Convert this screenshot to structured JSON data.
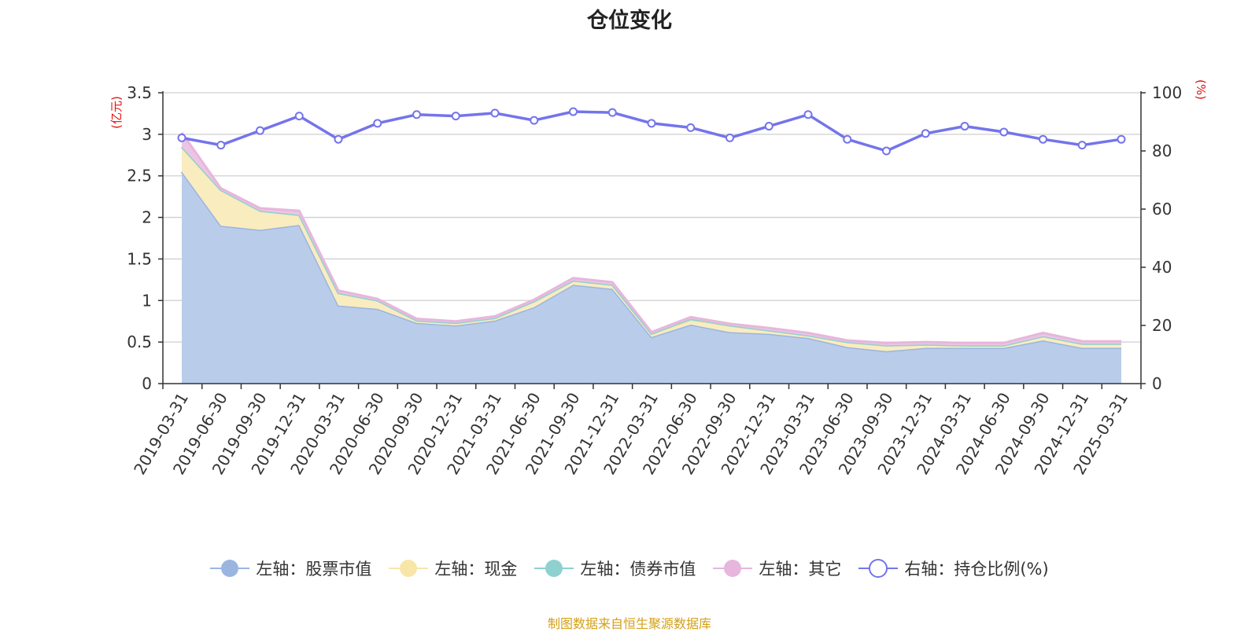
{
  "title": "仓位变化",
  "source_note": "制图数据来自恒生聚源数据库",
  "legend": [
    {
      "label": "左轴：股票市值",
      "color": "#9bb5e1",
      "marker": "filled"
    },
    {
      "label": "左轴：现金",
      "color": "#f8e6a8",
      "marker": "filled"
    },
    {
      "label": "左轴：债券市值",
      "color": "#8fd1cf",
      "marker": "filled"
    },
    {
      "label": "左轴：其它",
      "color": "#e7b6dc",
      "marker": "filled"
    },
    {
      "label": "右轴：持仓比例(%)",
      "color": "#7474ec",
      "marker": "hollow"
    }
  ],
  "chart_data": {
    "type": "area",
    "categories": [
      "2019-03-31",
      "2019-06-30",
      "2019-09-30",
      "2019-12-31",
      "2020-03-31",
      "2020-06-30",
      "2020-09-30",
      "2020-12-31",
      "2021-03-31",
      "2021-06-30",
      "2021-09-30",
      "2021-12-31",
      "2022-03-31",
      "2022-06-30",
      "2022-09-30",
      "2022-12-31",
      "2023-03-31",
      "2023-06-30",
      "2023-09-30",
      "2023-12-31",
      "2024-03-31",
      "2024-06-30",
      "2024-09-30",
      "2024-12-31",
      "2025-03-31"
    ],
    "left_axis": {
      "label": "(亿元)",
      "min": 0,
      "max": 3.5,
      "ticks": [
        "0",
        "0.5",
        "1",
        "1.5",
        "2",
        "2.5",
        "3",
        "3.5"
      ]
    },
    "right_axis": {
      "label": "(%)",
      "min": 0,
      "max": 100,
      "ticks": [
        "0",
        "20",
        "40",
        "60",
        "80",
        "100"
      ]
    },
    "stacked": true,
    "grid": true,
    "series": [
      {
        "name": "左轴：股票市值",
        "axis": "left",
        "color": "#9bb5e1",
        "values": [
          2.55,
          1.9,
          1.85,
          1.91,
          0.94,
          0.9,
          0.73,
          0.7,
          0.76,
          0.92,
          1.19,
          1.14,
          0.56,
          0.71,
          0.62,
          0.6,
          0.55,
          0.44,
          0.39,
          0.43,
          0.43,
          0.43,
          0.52,
          0.43,
          0.43
        ]
      },
      {
        "name": "左轴：现金",
        "axis": "left",
        "color": "#f8e6a8",
        "values": [
          0.3,
          0.43,
          0.23,
          0.12,
          0.15,
          0.1,
          0.03,
          0.03,
          0.03,
          0.07,
          0.05,
          0.05,
          0.04,
          0.05,
          0.08,
          0.04,
          0.03,
          0.06,
          0.07,
          0.04,
          0.03,
          0.03,
          0.05,
          0.05,
          0.05
        ]
      },
      {
        "name": "左轴：债券市值",
        "axis": "left",
        "color": "#8fd1cf",
        "values": [
          0,
          0,
          0,
          0,
          0,
          0,
          0,
          0,
          0,
          0,
          0,
          0,
          0,
          0.02,
          0,
          0,
          0,
          0,
          0,
          0,
          0,
          0,
          0,
          0,
          0
        ]
      },
      {
        "name": "左轴：其它",
        "axis": "left",
        "color": "#e7b6dc",
        "values": [
          0.17,
          0.02,
          0.03,
          0.05,
          0.03,
          0.02,
          0.02,
          0.02,
          0.02,
          0.02,
          0.03,
          0.03,
          0.02,
          0.02,
          0.02,
          0.03,
          0.03,
          0.02,
          0.03,
          0.03,
          0.03,
          0.03,
          0.04,
          0.03,
          0.03
        ]
      },
      {
        "name": "右轴：持仓比例(%)",
        "axis": "right",
        "type": "line",
        "color": "#7474ec",
        "values": [
          84.5,
          82,
          87,
          92,
          84,
          89.5,
          92.5,
          92,
          93,
          90.5,
          93.5,
          93.2,
          89.5,
          88,
          84.5,
          88.5,
          92.5,
          84,
          80,
          86,
          88.5,
          86.5,
          84,
          82,
          84
        ]
      }
    ]
  }
}
